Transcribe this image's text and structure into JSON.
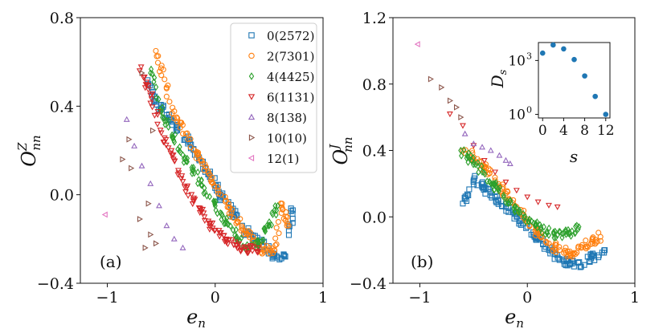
{
  "chart_data": [
    {
      "type": "scatter",
      "panel_label": "(a)",
      "xlabel_main": "e",
      "xlabel_sub": "n",
      "ylabel_main": "O",
      "ylabel_sup": "Z",
      "ylabel_sub": "nn",
      "xlim": [
        -1.25,
        1.0
      ],
      "ylim": [
        -0.4,
        0.8
      ],
      "xticks": [
        -1,
        0,
        1
      ],
      "xtick_labels": [
        "−1",
        "0",
        "1"
      ],
      "yticks": [
        -0.4,
        0.0,
        0.4,
        0.8
      ],
      "ytick_labels": [
        "−0.4",
        "0.0",
        "0.4",
        "0.8"
      ],
      "legend_position": "top-right",
      "series": [
        {
          "name": "0(2572)",
          "marker": "square",
          "color": "#1f77b4",
          "x": [
            -0.62,
            -0.55,
            -0.45,
            -0.35,
            -0.25,
            -0.15,
            -0.05,
            0.05,
            0.15,
            0.25,
            0.35,
            0.45,
            0.55,
            0.65,
            0.72
          ],
          "y": [
            0.5,
            0.42,
            0.36,
            0.3,
            0.24,
            0.16,
            0.08,
            0.0,
            -0.07,
            -0.14,
            -0.2,
            -0.23,
            -0.27,
            -0.28,
            -0.07
          ]
        },
        {
          "name": "2(7301)",
          "marker": "circle",
          "color": "#ff7f0e",
          "x": [
            -0.55,
            -0.45,
            -0.35,
            -0.25,
            -0.15,
            -0.05,
            0.05,
            0.15,
            0.25,
            0.35,
            0.45,
            0.55,
            0.62,
            0.68
          ],
          "y": [
            0.65,
            0.48,
            0.33,
            0.25,
            0.17,
            0.09,
            0.0,
            -0.08,
            -0.15,
            -0.21,
            -0.25,
            -0.25,
            -0.04,
            -0.14
          ]
        },
        {
          "name": "4(4425)",
          "marker": "diamond",
          "color": "#2ca02c",
          "x": [
            -0.6,
            -0.5,
            -0.4,
            -0.3,
            -0.2,
            -0.1,
            0.0,
            0.1,
            0.2,
            0.3,
            0.4,
            0.5,
            0.58
          ],
          "y": [
            0.55,
            0.38,
            0.27,
            0.18,
            0.11,
            0.03,
            -0.05,
            -0.12,
            -0.19,
            -0.24,
            -0.22,
            -0.14,
            -0.05
          ]
        },
        {
          "name": "6(1131)",
          "marker": "triangle-down",
          "color": "#d62728",
          "x": [
            -0.7,
            -0.6,
            -0.5,
            -0.4,
            -0.3,
            -0.2,
            -0.1,
            0.0,
            0.1,
            0.2,
            0.3,
            0.4
          ],
          "y": [
            0.56,
            0.45,
            0.28,
            0.18,
            0.06,
            -0.03,
            -0.1,
            -0.16,
            -0.2,
            -0.23,
            -0.25,
            -0.24
          ]
        },
        {
          "name": "8(138)",
          "marker": "triangle-up",
          "color": "#9467bd",
          "x": [
            -0.82,
            -0.75,
            -0.68,
            -0.6,
            -0.52,
            -0.45,
            -0.38,
            -0.3
          ],
          "y": [
            0.34,
            0.22,
            0.13,
            0.05,
            -0.05,
            -0.14,
            -0.2,
            -0.24
          ]
        },
        {
          "name": "10(10)",
          "marker": "triangle-right",
          "color": "#8c564b",
          "x": [
            -0.86,
            -0.78,
            -0.7,
            -0.6,
            -0.55,
            -0.68,
            -0.8,
            -0.65,
            -0.62,
            -0.58
          ],
          "y": [
            0.16,
            0.12,
            -0.11,
            -0.18,
            -0.22,
            0.55,
            0.25,
            -0.24,
            -0.04,
            0.29
          ]
        },
        {
          "name": "12(1)",
          "marker": "triangle-left",
          "color": "#e377c2",
          "x": [
            -1.02
          ],
          "y": [
            -0.09
          ]
        }
      ]
    },
    {
      "type": "scatter",
      "panel_label": "(b)",
      "xlabel_main": "e",
      "xlabel_sub": "n",
      "ylabel_main": "O",
      "ylabel_sup": "J",
      "ylabel_sub": "nn",
      "xlim": [
        -1.25,
        1.0
      ],
      "ylim": [
        -0.4,
        1.2
      ],
      "xticks": [
        -1,
        0,
        1
      ],
      "xtick_labels": [
        "−1",
        "0",
        "1"
      ],
      "yticks": [
        -0.4,
        0.0,
        0.4,
        0.8,
        1.2
      ],
      "ytick_labels": [
        "−0.4",
        "0.0",
        "0.4",
        "0.8",
        "1.2"
      ],
      "series": [
        {
          "name": "0(2572)",
          "marker": "square",
          "color": "#1f77b4",
          "x": [
            -0.6,
            -0.5,
            -0.4,
            -0.3,
            -0.2,
            -0.1,
            0.0,
            0.1,
            0.2,
            0.3,
            0.4,
            0.5,
            0.6,
            0.72
          ],
          "y": [
            0.08,
            0.22,
            0.18,
            0.12,
            0.06,
            0.0,
            -0.06,
            -0.13,
            -0.2,
            -0.26,
            -0.28,
            -0.3,
            -0.24,
            -0.2
          ]
        },
        {
          "name": "2(7301)",
          "marker": "circle",
          "color": "#ff7f0e",
          "x": [
            -0.6,
            -0.5,
            -0.4,
            -0.3,
            -0.2,
            -0.1,
            0.0,
            0.1,
            0.2,
            0.3,
            0.4,
            0.5,
            0.6,
            0.68
          ],
          "y": [
            0.4,
            0.36,
            0.3,
            0.22,
            0.14,
            0.06,
            -0.03,
            -0.1,
            -0.16,
            -0.2,
            -0.22,
            -0.18,
            -0.15,
            -0.12
          ]
        },
        {
          "name": "4(4425)",
          "marker": "diamond",
          "color": "#2ca02c",
          "x": [
            -0.62,
            -0.52,
            -0.42,
            -0.32,
            -0.22,
            -0.12,
            -0.02,
            0.08,
            0.18,
            0.28,
            0.38,
            0.48
          ],
          "y": [
            0.4,
            0.34,
            0.27,
            0.2,
            0.13,
            0.06,
            0.0,
            -0.05,
            -0.09,
            -0.11,
            -0.1,
            -0.06
          ]
        },
        {
          "name": "6(1131)",
          "marker": "triangle-down",
          "color": "#d62728",
          "x": [
            -0.72,
            -0.6,
            -0.5,
            -0.4,
            -0.3,
            -0.2,
            -0.1,
            0.0,
            0.1,
            0.2,
            0.28
          ],
          "y": [
            0.62,
            0.55,
            0.43,
            0.34,
            0.27,
            0.21,
            0.16,
            0.12,
            0.09,
            0.07,
            0.06
          ]
        },
        {
          "name": "8(138)",
          "marker": "triangle-up",
          "color": "#9467bd",
          "x": [
            -0.58,
            -0.5,
            -0.42,
            -0.34,
            -0.26,
            -0.2,
            -0.16
          ],
          "y": [
            0.5,
            0.44,
            0.42,
            0.4,
            0.37,
            0.34,
            0.32
          ]
        },
        {
          "name": "10(10)",
          "marker": "triangle-right",
          "color": "#8c564b",
          "x": [
            -0.9,
            -0.8,
            -0.72,
            -0.66,
            -0.62
          ],
          "y": [
            0.83,
            0.78,
            0.7,
            0.66,
            0.6
          ]
        },
        {
          "name": "12(1)",
          "marker": "triangle-left",
          "color": "#e377c2",
          "x": [
            -1.02
          ],
          "y": [
            1.04
          ]
        }
      ],
      "inset": {
        "type": "scatter",
        "xlabel": "s",
        "ylabel_main": "D",
        "ylabel_sub": "s",
        "xlim": [
          -0.8,
          12.8
        ],
        "yscale": "log",
        "ylim_log10": [
          -0.2,
          4.0
        ],
        "xticks": [
          0,
          4,
          8,
          12
        ],
        "xtick_labels": [
          "0",
          "4",
          "8",
          "12"
        ],
        "yticks_log10": [
          0,
          3
        ],
        "ytick_labels": [
          "10",
          "10"
        ],
        "ytick_exponents": [
          "0",
          "3"
        ],
        "color": "#1f77b4",
        "x": [
          0,
          2,
          4,
          6,
          8,
          10,
          12
        ],
        "y": [
          2572,
          7301,
          4425,
          1131,
          138,
          10,
          1
        ]
      }
    }
  ]
}
